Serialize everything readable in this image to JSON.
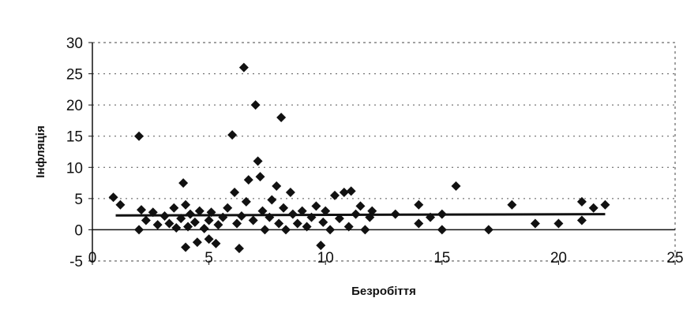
{
  "chart_data": {
    "type": "scatter",
    "title": "",
    "xlabel": "Безробіття",
    "ylabel": "Інфляція",
    "xlim": [
      0,
      25
    ],
    "ylim": [
      -5,
      30
    ],
    "x_ticks": [
      "0",
      "5",
      "10",
      "15",
      "20",
      "25"
    ],
    "y_ticks": [
      "-5",
      "0",
      "5",
      "10",
      "15",
      "20",
      "25",
      "30"
    ],
    "grid": true,
    "marker": "diamond",
    "marker_color": "#111111",
    "series": [
      {
        "points": [
          [
            0.9,
            5.2
          ],
          [
            1.2,
            4.0
          ],
          [
            2.0,
            15.0
          ],
          [
            2.0,
            0.0
          ],
          [
            2.1,
            3.2
          ],
          [
            2.3,
            1.5
          ],
          [
            2.6,
            2.8
          ],
          [
            2.8,
            0.8
          ],
          [
            3.1,
            2.2
          ],
          [
            3.3,
            1.0
          ],
          [
            3.5,
            3.5
          ],
          [
            3.6,
            0.3
          ],
          [
            3.8,
            1.8
          ],
          [
            3.9,
            7.5
          ],
          [
            4.0,
            -2.8
          ],
          [
            4.0,
            4.0
          ],
          [
            4.1,
            0.5
          ],
          [
            4.2,
            2.5
          ],
          [
            4.4,
            1.2
          ],
          [
            4.5,
            -2.0
          ],
          [
            4.6,
            3.0
          ],
          [
            4.8,
            0.2
          ],
          [
            5.0,
            1.5
          ],
          [
            5.0,
            -1.5
          ],
          [
            5.1,
            2.8
          ],
          [
            5.3,
            -2.2
          ],
          [
            5.4,
            0.8
          ],
          [
            5.6,
            2.0
          ],
          [
            5.8,
            3.5
          ],
          [
            6.0,
            15.2
          ],
          [
            6.1,
            6.0
          ],
          [
            6.2,
            1.0
          ],
          [
            6.3,
            -3.0
          ],
          [
            6.4,
            2.2
          ],
          [
            6.5,
            26.0
          ],
          [
            6.6,
            4.5
          ],
          [
            6.7,
            8.0
          ],
          [
            6.9,
            1.5
          ],
          [
            7.0,
            20.0
          ],
          [
            7.1,
            11.0
          ],
          [
            7.2,
            8.5
          ],
          [
            7.3,
            3.0
          ],
          [
            7.4,
            0.0
          ],
          [
            7.6,
            2.0
          ],
          [
            7.7,
            4.8
          ],
          [
            7.9,
            7.0
          ],
          [
            8.0,
            1.0
          ],
          [
            8.1,
            18.0
          ],
          [
            8.2,
            3.5
          ],
          [
            8.3,
            0.0
          ],
          [
            8.5,
            6.0
          ],
          [
            8.6,
            2.5
          ],
          [
            8.8,
            1.0
          ],
          [
            9.0,
            3.0
          ],
          [
            9.2,
            0.5
          ],
          [
            9.4,
            2.0
          ],
          [
            9.6,
            3.8
          ],
          [
            9.8,
            -2.5
          ],
          [
            9.9,
            1.2
          ],
          [
            10.0,
            3.0
          ],
          [
            10.2,
            0.0
          ],
          [
            10.4,
            5.5
          ],
          [
            10.6,
            1.8
          ],
          [
            10.8,
            6.0
          ],
          [
            11.0,
            0.5
          ],
          [
            11.1,
            6.2
          ],
          [
            11.3,
            2.5
          ],
          [
            11.5,
            3.8
          ],
          [
            11.7,
            0.0
          ],
          [
            11.9,
            2.0
          ],
          [
            12.0,
            3.0
          ],
          [
            13.0,
            2.5
          ],
          [
            14.0,
            1.0
          ],
          [
            14.0,
            4.0
          ],
          [
            14.5,
            2.0
          ],
          [
            15.0,
            2.5
          ],
          [
            15.0,
            0.0
          ],
          [
            15.6,
            7.0
          ],
          [
            17.0,
            0.0
          ],
          [
            18.0,
            4.0
          ],
          [
            19.0,
            1.0
          ],
          [
            20.0,
            1.0
          ],
          [
            21.0,
            4.5
          ],
          [
            21.0,
            1.5
          ],
          [
            21.5,
            3.5
          ],
          [
            22.0,
            4.0
          ]
        ]
      }
    ],
    "trendline": {
      "from": [
        1,
        2.3
      ],
      "to": [
        22,
        2.5
      ]
    }
  }
}
